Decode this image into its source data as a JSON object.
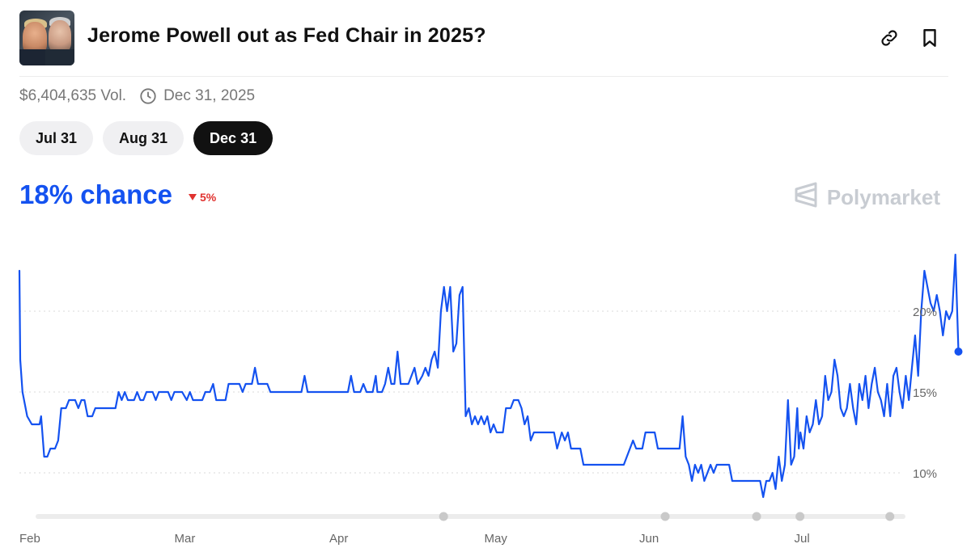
{
  "header": {
    "title": "Jerome Powell out as Fed Chair in 2025?",
    "link_icon": "link-icon",
    "bookmark_icon": "bookmark-icon"
  },
  "meta": {
    "volume": "$6,404,635 Vol.",
    "end_date": "Dec 31, 2025",
    "clock_icon": "clock-icon"
  },
  "tabs": [
    {
      "label": "Jul 31",
      "active": false
    },
    {
      "label": "Aug 31",
      "active": false
    },
    {
      "label": "Dec 31",
      "active": true
    }
  ],
  "chance": {
    "text": "18% chance",
    "delta": "5%",
    "delta_direction": "down",
    "accent": "#1452f0",
    "down_color": "#e0322f"
  },
  "brand": {
    "name": "Polymarket",
    "icon": "polymarket-logo-icon"
  },
  "chart_data": {
    "type": "line",
    "x_tick_labels": [
      "Feb",
      "Mar",
      "Apr",
      "May",
      "Jun",
      "Jul"
    ],
    "x_ticks": [
      0,
      1,
      2,
      3,
      4,
      5
    ],
    "y_tick_labels": [
      "20%",
      "15%",
      "10%"
    ],
    "y_ticks": [
      20,
      15,
      10
    ],
    "ylim": [
      7.5,
      23.5
    ],
    "xlim": [
      0,
      5.85
    ],
    "grid": true,
    "line_color": "#1452f0",
    "series": [
      {
        "values": [
          [
            0.0,
            22.5
          ],
          [
            0.005,
            17
          ],
          [
            0.02,
            15
          ],
          [
            0.05,
            13.5
          ],
          [
            0.08,
            13
          ],
          [
            0.13,
            13
          ],
          [
            0.14,
            13.5
          ],
          [
            0.16,
            11
          ],
          [
            0.18,
            11
          ],
          [
            0.2,
            11.5
          ],
          [
            0.23,
            11.5
          ],
          [
            0.25,
            12
          ],
          [
            0.27,
            14
          ],
          [
            0.3,
            14
          ],
          [
            0.32,
            14.5
          ],
          [
            0.36,
            14.5
          ],
          [
            0.38,
            14
          ],
          [
            0.4,
            14.5
          ],
          [
            0.42,
            14.5
          ],
          [
            0.44,
            13.5
          ],
          [
            0.47,
            13.5
          ],
          [
            0.49,
            14
          ],
          [
            0.62,
            14
          ],
          [
            0.64,
            15
          ],
          [
            0.66,
            14.5
          ],
          [
            0.68,
            15
          ],
          [
            0.7,
            14.5
          ],
          [
            0.74,
            14.5
          ],
          [
            0.76,
            15
          ],
          [
            0.78,
            14.5
          ],
          [
            0.8,
            14.5
          ],
          [
            0.82,
            15
          ],
          [
            0.86,
            15
          ],
          [
            0.88,
            14.5
          ],
          [
            0.9,
            15
          ],
          [
            0.96,
            15
          ],
          [
            0.98,
            14.5
          ],
          [
            1.0,
            15
          ],
          [
            1.05,
            15
          ],
          [
            1.08,
            14.5
          ],
          [
            1.1,
            15
          ],
          [
            1.12,
            14.5
          ],
          [
            1.18,
            14.5
          ],
          [
            1.2,
            15
          ],
          [
            1.23,
            15
          ],
          [
            1.25,
            15.5
          ],
          [
            1.27,
            14.5
          ],
          [
            1.33,
            14.5
          ],
          [
            1.35,
            15.5
          ],
          [
            1.42,
            15.5
          ],
          [
            1.44,
            15
          ],
          [
            1.46,
            15.5
          ],
          [
            1.5,
            15.5
          ],
          [
            1.52,
            16.5
          ],
          [
            1.54,
            15.5
          ],
          [
            1.6,
            15.5
          ],
          [
            1.62,
            15
          ],
          [
            1.82,
            15
          ],
          [
            1.84,
            16
          ],
          [
            1.86,
            15
          ],
          [
            2.12,
            15
          ],
          [
            2.14,
            16
          ],
          [
            2.16,
            15
          ],
          [
            2.2,
            15
          ],
          [
            2.22,
            15.5
          ],
          [
            2.24,
            15
          ],
          [
            2.28,
            15
          ],
          [
            2.3,
            16
          ],
          [
            2.31,
            15
          ],
          [
            2.34,
            15
          ],
          [
            2.36,
            15.5
          ],
          [
            2.38,
            16.5
          ],
          [
            2.4,
            15.5
          ],
          [
            2.42,
            15.5
          ],
          [
            2.44,
            17.5
          ],
          [
            2.46,
            15.5
          ],
          [
            2.48,
            15.5
          ],
          [
            2.51,
            15.5
          ],
          [
            2.53,
            16
          ],
          [
            2.55,
            16.5
          ],
          [
            2.57,
            15.5
          ],
          [
            2.6,
            16
          ],
          [
            2.62,
            16.5
          ],
          [
            2.64,
            16
          ],
          [
            2.66,
            17
          ],
          [
            2.68,
            17.5
          ],
          [
            2.7,
            16.5
          ],
          [
            2.72,
            20
          ],
          [
            2.74,
            21.5
          ],
          [
            2.76,
            20
          ],
          [
            2.78,
            21.5
          ],
          [
            2.8,
            17.5
          ],
          [
            2.82,
            18
          ],
          [
            2.84,
            21
          ],
          [
            2.86,
            21.5
          ],
          [
            2.88,
            13.5
          ],
          [
            2.9,
            14
          ],
          [
            2.92,
            13
          ],
          [
            2.94,
            13.5
          ],
          [
            2.96,
            13
          ],
          [
            2.98,
            13.5
          ],
          [
            3.0,
            13
          ],
          [
            3.02,
            13.5
          ],
          [
            3.04,
            12.5
          ],
          [
            3.06,
            13
          ],
          [
            3.08,
            12.5
          ],
          [
            3.12,
            12.5
          ],
          [
            3.14,
            14
          ],
          [
            3.17,
            14
          ],
          [
            3.19,
            14.5
          ],
          [
            3.22,
            14.5
          ],
          [
            3.24,
            14
          ],
          [
            3.26,
            13
          ],
          [
            3.28,
            13.5
          ],
          [
            3.3,
            12
          ],
          [
            3.32,
            12.5
          ],
          [
            3.45,
            12.5
          ],
          [
            3.47,
            11.5
          ],
          [
            3.5,
            12.5
          ],
          [
            3.52,
            12
          ],
          [
            3.54,
            12.5
          ],
          [
            3.56,
            11.5
          ],
          [
            3.62,
            11.5
          ],
          [
            3.64,
            10.5
          ],
          [
            3.9,
            10.5
          ],
          [
            3.92,
            11
          ],
          [
            3.94,
            11.5
          ],
          [
            3.96,
            12
          ],
          [
            3.98,
            11.5
          ],
          [
            4.02,
            11.5
          ],
          [
            4.04,
            12.5
          ],
          [
            4.1,
            12.5
          ],
          [
            4.12,
            11.5
          ],
          [
            4.26,
            11.5
          ],
          [
            4.28,
            13.5
          ],
          [
            4.3,
            11
          ],
          [
            4.32,
            10.5
          ],
          [
            4.33,
            10
          ],
          [
            4.34,
            9.5
          ],
          [
            4.36,
            10.5
          ],
          [
            4.38,
            10
          ],
          [
            4.4,
            10.5
          ],
          [
            4.42,
            9.5
          ],
          [
            4.44,
            10
          ],
          [
            4.46,
            10.5
          ],
          [
            4.48,
            10
          ],
          [
            4.5,
            10.5
          ],
          [
            4.58,
            10.5
          ],
          [
            4.6,
            9.5
          ],
          [
            4.78,
            9.5
          ],
          [
            4.8,
            8.5
          ],
          [
            4.82,
            9.5
          ],
          [
            4.84,
            9.5
          ],
          [
            4.86,
            10
          ],
          [
            4.88,
            9
          ],
          [
            4.9,
            11
          ],
          [
            4.92,
            9.5
          ],
          [
            4.94,
            10.5
          ],
          [
            4.96,
            14.5
          ],
          [
            4.98,
            10.5
          ],
          [
            5.0,
            11
          ],
          [
            5.02,
            14
          ],
          [
            5.03,
            11.5
          ],
          [
            5.04,
            12.5
          ],
          [
            5.06,
            11.5
          ],
          [
            5.08,
            13.5
          ],
          [
            5.1,
            12.5
          ],
          [
            5.12,
            13
          ],
          [
            5.14,
            14.5
          ],
          [
            5.16,
            13
          ],
          [
            5.18,
            13.5
          ],
          [
            5.2,
            16
          ],
          [
            5.22,
            14.5
          ],
          [
            5.24,
            15
          ],
          [
            5.26,
            17
          ],
          [
            5.28,
            16
          ],
          [
            5.3,
            14
          ],
          [
            5.32,
            13.5
          ],
          [
            5.34,
            14
          ],
          [
            5.36,
            15.5
          ],
          [
            5.38,
            14
          ],
          [
            5.4,
            13
          ],
          [
            5.42,
            15.5
          ],
          [
            5.44,
            14.5
          ],
          [
            5.46,
            16
          ],
          [
            5.48,
            14
          ],
          [
            5.5,
            15.5
          ],
          [
            5.52,
            16.5
          ],
          [
            5.54,
            15
          ],
          [
            5.56,
            14.5
          ],
          [
            5.58,
            13.5
          ],
          [
            5.6,
            15.5
          ],
          [
            5.62,
            13.5
          ],
          [
            5.64,
            16
          ],
          [
            5.66,
            16.5
          ],
          [
            5.68,
            15
          ],
          [
            5.7,
            14
          ],
          [
            5.72,
            16
          ],
          [
            5.74,
            14.5
          ],
          [
            5.76,
            16.5
          ],
          [
            5.78,
            18.5
          ],
          [
            5.8,
            16
          ],
          [
            5.82,
            20
          ],
          [
            5.84,
            22.5
          ],
          [
            5.86,
            21.5
          ],
          [
            5.88,
            20.5
          ],
          [
            5.9,
            20
          ],
          [
            5.92,
            21
          ],
          [
            5.94,
            20
          ],
          [
            5.96,
            18.5
          ],
          [
            5.98,
            20
          ],
          [
            6.0,
            19.5
          ],
          [
            6.02,
            20
          ],
          [
            6.04,
            23.5
          ],
          [
            6.06,
            17.5
          ]
        ]
      }
    ],
    "range_markers": [
      2.8,
      4.23,
      4.82,
      5.1,
      5.68
    ]
  }
}
